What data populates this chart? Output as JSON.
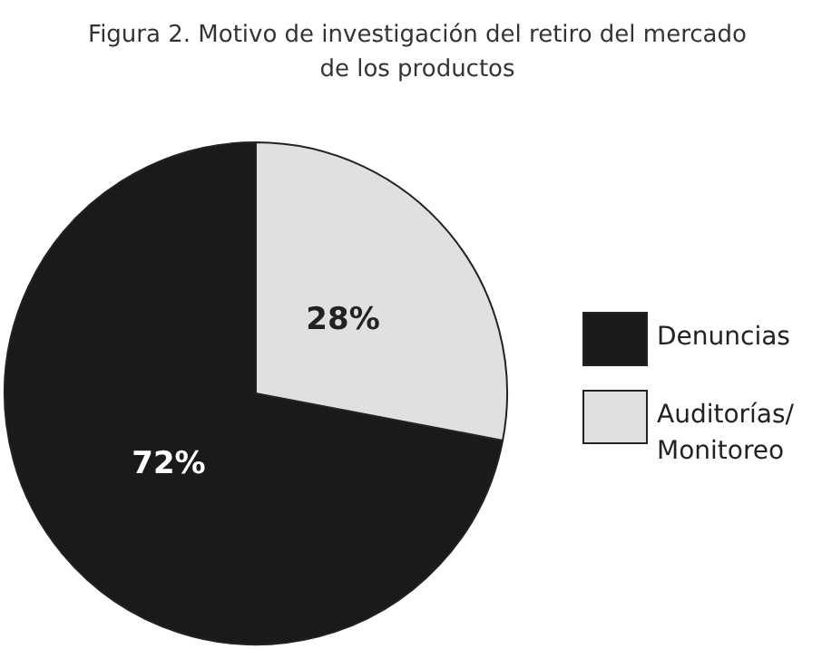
{
  "chart_data": {
    "type": "pie",
    "title": "Figura 2. Motivo de investigación del retiro del mercado de los productos",
    "categories": [
      "Denuncias",
      "Auditorías/Monitoreo"
    ],
    "values": [
      72,
      28
    ],
    "colors": [
      "#1a1a1a",
      "#e0e0e0"
    ],
    "value_labels": [
      "72%",
      "28%"
    ],
    "legend": "right"
  }
}
